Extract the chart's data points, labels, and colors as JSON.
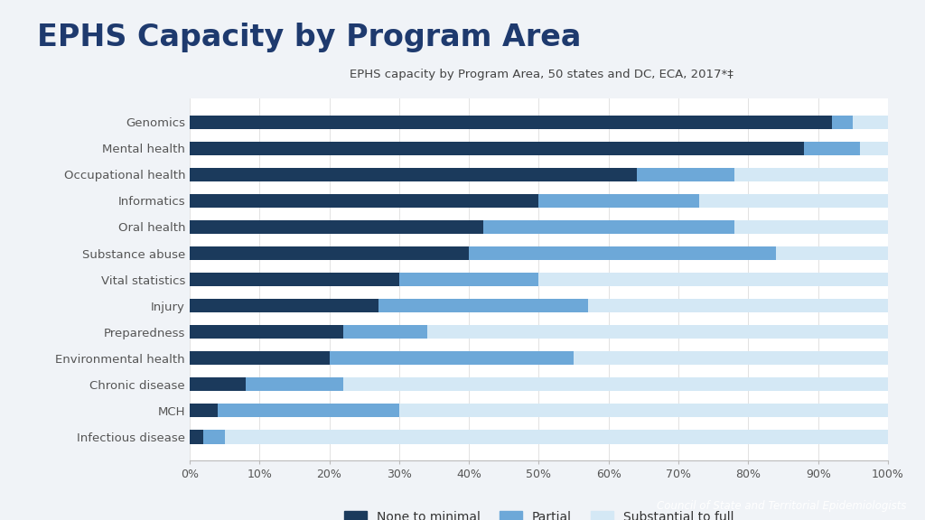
{
  "title": "EPHS Capacity by Program Area",
  "subtitle": "EPHS capacity by Program Area, 50 states and DC, ECA, 2017*‡",
  "categories": [
    "Genomics",
    "Mental health",
    "Occupational health",
    "Informatics",
    "Oral health",
    "Substance abuse",
    "Vital statistics",
    "Injury",
    "Preparedness",
    "Environmental health",
    "Chronic disease",
    "MCH",
    "Infectious disease"
  ],
  "none_to_minimal": [
    92,
    88,
    64,
    50,
    42,
    40,
    30,
    27,
    22,
    20,
    8,
    4,
    2
  ],
  "partial": [
    3,
    8,
    14,
    23,
    36,
    44,
    20,
    30,
    12,
    35,
    14,
    26,
    3
  ],
  "substantial_to_full": [
    5,
    4,
    22,
    27,
    22,
    16,
    50,
    43,
    66,
    45,
    78,
    70,
    95
  ],
  "color_none": "#1b3a5c",
  "color_partial": "#6da8d8",
  "color_substantial": "#d4e8f5",
  "color_background": "#f0f3f7",
  "color_header_bg": "#e8ecf2",
  "color_footer_bg": "#b8c8dc",
  "footer_text": "Council of State and Territorial Epidemiologists",
  "legend_labels": [
    "None to minimal",
    "Partial",
    "Substantial to full"
  ],
  "title_color": "#1e3a6e",
  "subtitle_color": "#444444",
  "tick_color": "#555555"
}
